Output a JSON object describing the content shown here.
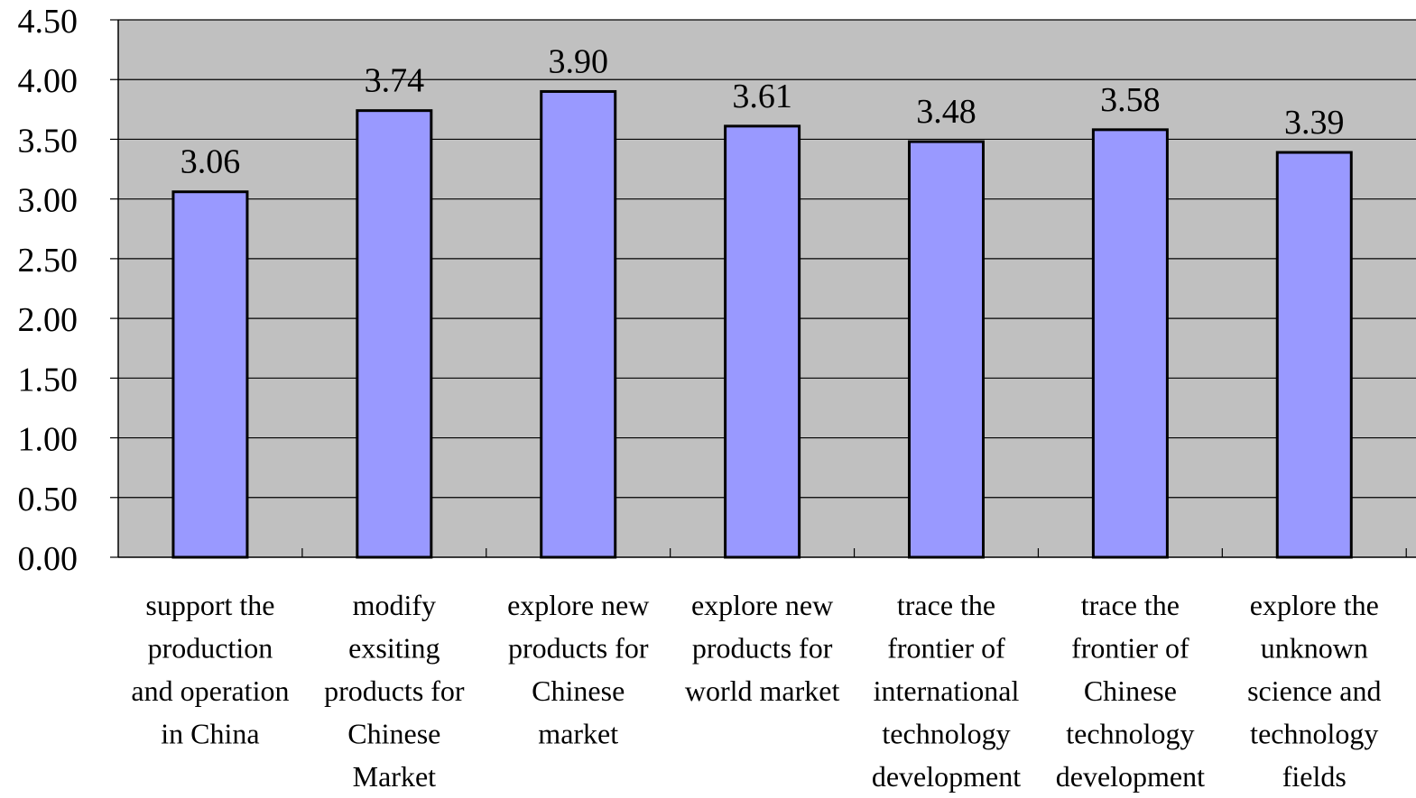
{
  "chart_data": {
    "type": "bar",
    "categories": [
      [
        "support the",
        "production",
        "and operation",
        "in China"
      ],
      [
        "modify",
        "exsiting",
        "products for",
        "Chinese",
        "Market"
      ],
      [
        "explore new",
        "products for",
        "Chinese",
        "market"
      ],
      [
        "explore new",
        "products for",
        "world market"
      ],
      [
        "trace the",
        "frontier of",
        "international",
        "technology",
        "development"
      ],
      [
        "trace  the",
        "frontier of",
        "Chinese",
        "technology",
        "development"
      ],
      [
        "explore the",
        "unknown",
        "science and",
        "technology",
        "fields"
      ]
    ],
    "values": [
      3.06,
      3.74,
      3.9,
      3.61,
      3.48,
      3.58,
      3.39
    ],
    "value_labels": [
      "3.06",
      "3.74",
      "3.90",
      "3.61",
      "3.48",
      "3.58",
      "3.39"
    ],
    "y_ticks": [
      "0.00",
      "0.50",
      "1.00",
      "1.50",
      "2.00",
      "2.50",
      "3.00",
      "3.50",
      "4.00",
      "4.50"
    ],
    "ylim": [
      0,
      4.5
    ],
    "title": "",
    "xlabel": "",
    "ylabel": "",
    "grid": true,
    "legend": "none",
    "colors": {
      "bar": "#9999ff",
      "plot_background": "#c0c0c0",
      "gridline": "#000000",
      "bar_outline": "#000000"
    }
  }
}
